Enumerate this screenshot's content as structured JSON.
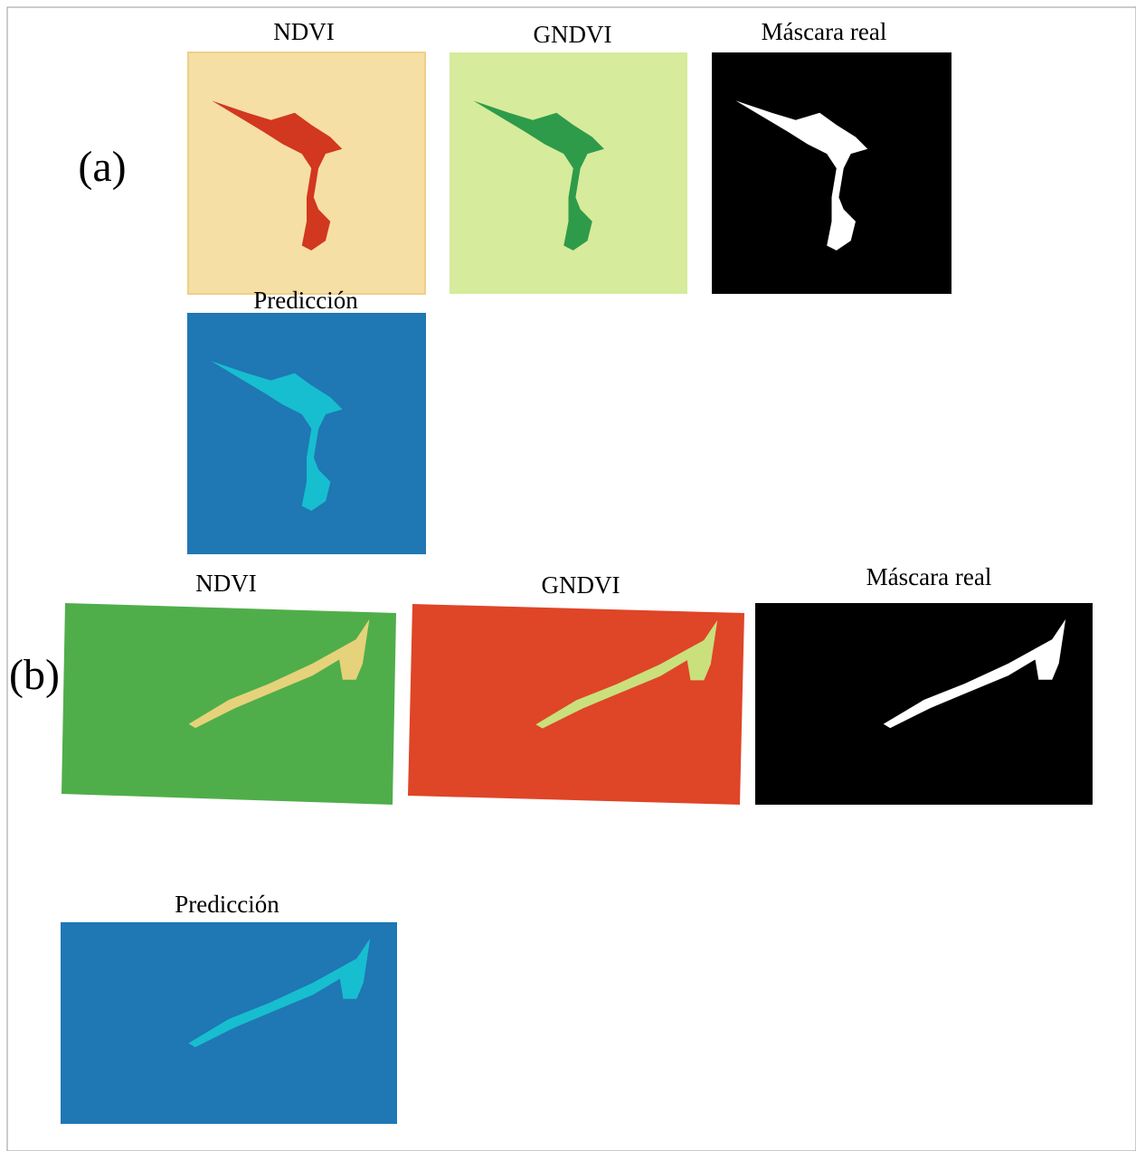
{
  "panels": [
    {
      "label": "(a)",
      "images": [
        {
          "title": "NDVI"
        },
        {
          "title": "GNDVI"
        },
        {
          "title": "Máscara real"
        },
        {
          "title": "Predicción"
        }
      ]
    },
    {
      "label": "(b)",
      "images": [
        {
          "title": "NDVI"
        },
        {
          "title": "GNDVI"
        },
        {
          "title": "Máscara real"
        },
        {
          "title": "Predicción"
        }
      ]
    }
  ]
}
